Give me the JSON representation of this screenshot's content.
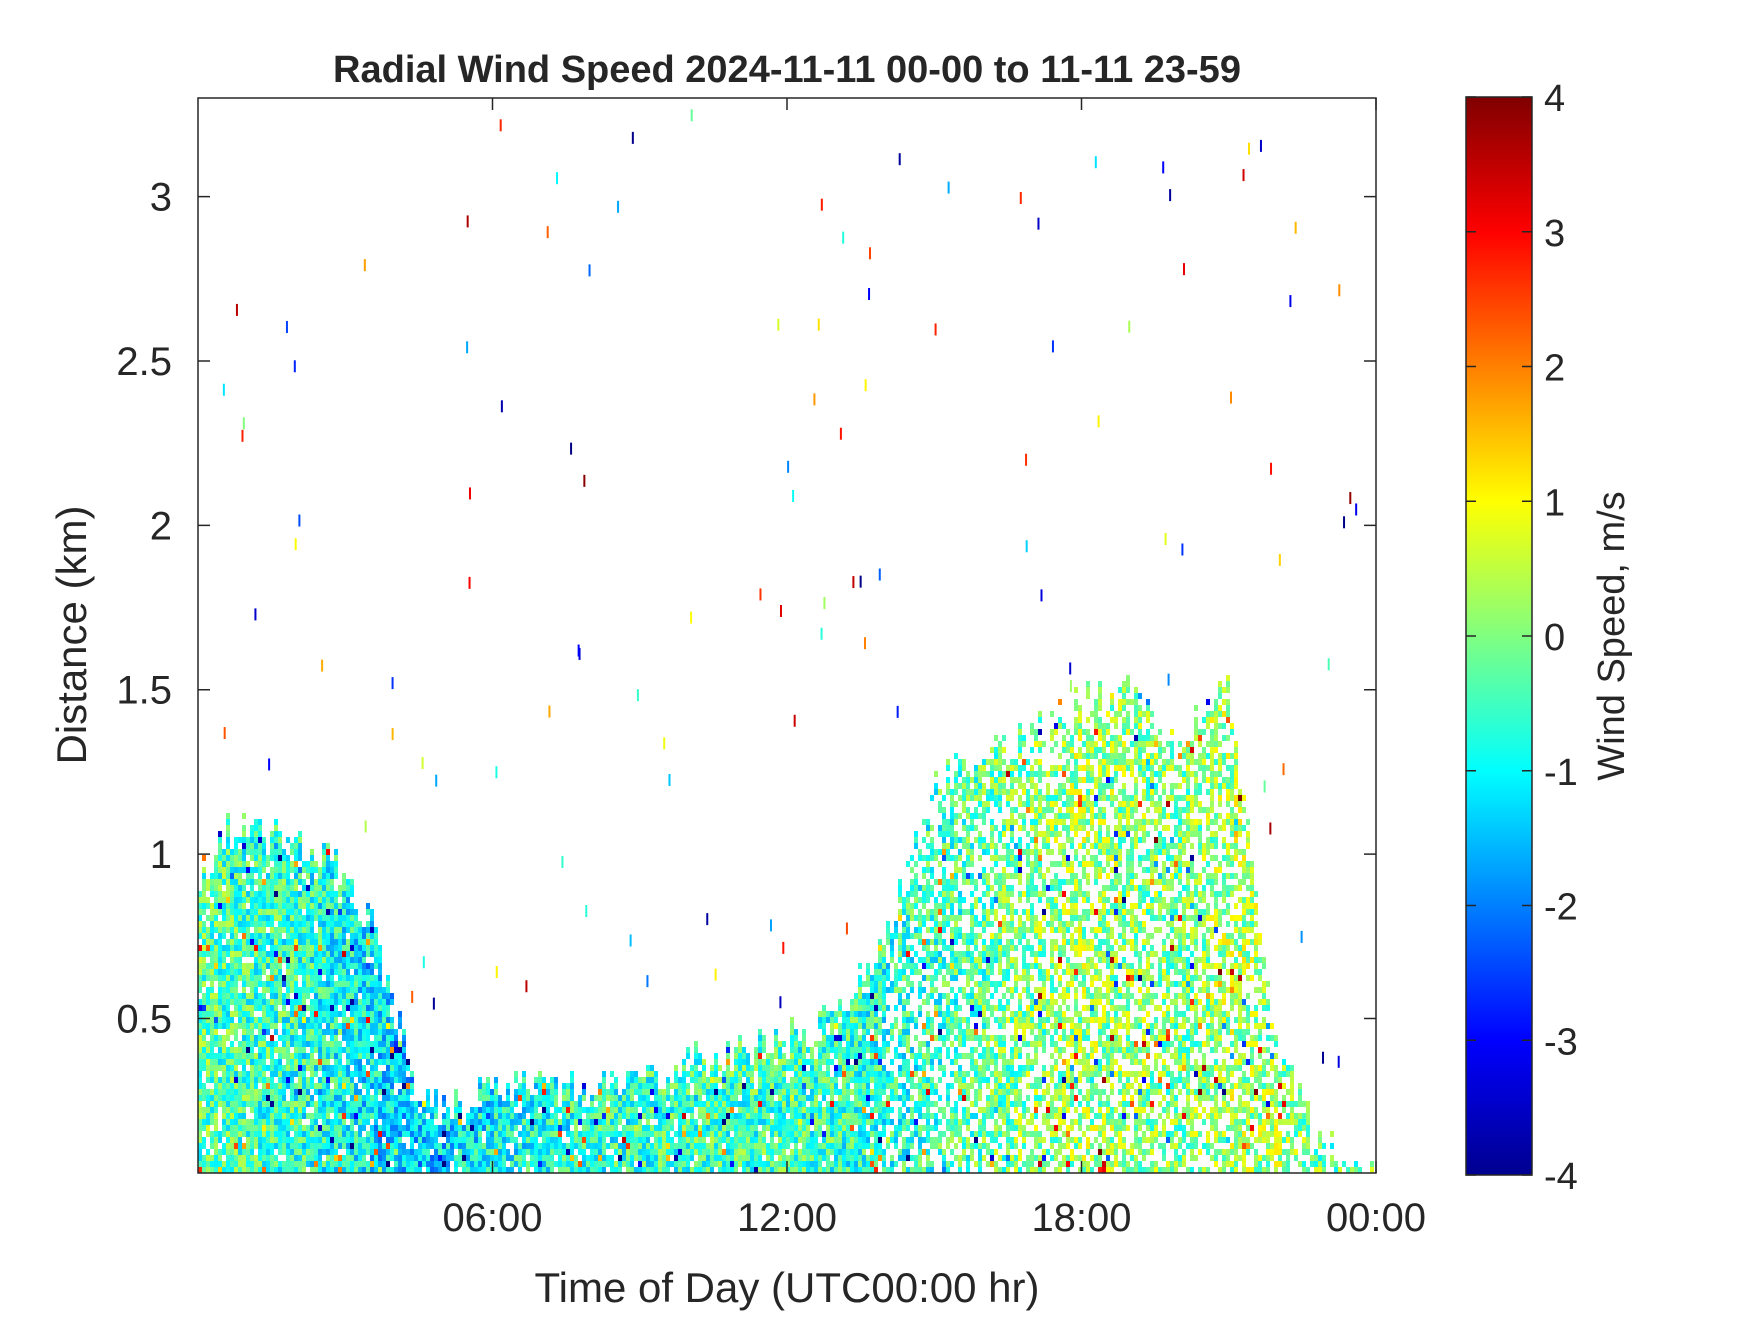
{
  "chart_data": {
    "type": "heatmap",
    "title": "Radial Wind Speed 2024-11-11 00-00 to 11-11 23-59",
    "xlabel": "Time of Day (UTC00:00 hr)",
    "ylabel": "Distance (km)",
    "xlim_hours": [
      0,
      24
    ],
    "ylim_km": [
      0.03,
      3.3
    ],
    "x_ticks": [
      {
        "hour": 6,
        "label": "06:00"
      },
      {
        "hour": 12,
        "label": "12:00"
      },
      {
        "hour": 18,
        "label": "18:00"
      },
      {
        "hour": 24,
        "label": "00:00"
      }
    ],
    "y_ticks": [
      {
        "value": 0.5,
        "label": "0.5"
      },
      {
        "value": 1,
        "label": "1"
      },
      {
        "value": 1.5,
        "label": "1.5"
      },
      {
        "value": 2,
        "label": "2"
      },
      {
        "value": 2.5,
        "label": "2.5"
      },
      {
        "value": 3,
        "label": "3"
      }
    ],
    "colorbar": {
      "label": "Wind Speed, m/s",
      "clim": [
        -4,
        4
      ],
      "colormap": "jet",
      "ticks": [
        {
          "value": 4,
          "label": "4"
        },
        {
          "value": 3,
          "label": "3"
        },
        {
          "value": 2,
          "label": "2"
        },
        {
          "value": 1,
          "label": "1"
        },
        {
          "value": 0,
          "label": "0"
        },
        {
          "value": -1,
          "label": "-1"
        },
        {
          "value": -2,
          "label": "-2"
        },
        {
          "value": -3,
          "label": "-3"
        },
        {
          "value": -4,
          "label": "-4"
        }
      ]
    },
    "grid": false,
    "data_envelope": [
      {
        "hour": 0.0,
        "top_km": 0.9,
        "speed": -0.3
      },
      {
        "hour": 0.5,
        "top_km": 1.05,
        "speed": -0.4
      },
      {
        "hour": 1.0,
        "top_km": 1.05,
        "speed": -0.5
      },
      {
        "hour": 2.0,
        "top_km": 1.05,
        "speed": -0.6
      },
      {
        "hour": 3.0,
        "top_km": 0.95,
        "speed": -0.9
      },
      {
        "hour": 3.5,
        "top_km": 0.8,
        "speed": -1.1
      },
      {
        "hour": 4.0,
        "top_km": 0.55,
        "speed": -1.3
      },
      {
        "hour": 4.5,
        "top_km": 0.25,
        "speed": -1.5
      },
      {
        "hour": 5.0,
        "top_km": 0.2,
        "speed": -1.2
      },
      {
        "hour": 6.0,
        "top_km": 0.3,
        "speed": -1.0
      },
      {
        "hour": 7.0,
        "top_km": 0.28,
        "speed": -0.8
      },
      {
        "hour": 8.0,
        "top_km": 0.27,
        "speed": -0.7
      },
      {
        "hour": 9.0,
        "top_km": 0.3,
        "speed": -0.6
      },
      {
        "hour": 10.0,
        "top_km": 0.35,
        "speed": -0.5
      },
      {
        "hour": 11.0,
        "top_km": 0.38,
        "speed": -0.5
      },
      {
        "hour": 12.0,
        "top_km": 0.42,
        "speed": -0.5
      },
      {
        "hour": 13.0,
        "top_km": 0.5,
        "speed": -0.6
      },
      {
        "hour": 14.0,
        "top_km": 0.7,
        "speed": -0.7
      },
      {
        "hour": 15.0,
        "top_km": 1.2,
        "speed": -0.6
      },
      {
        "hour": 16.0,
        "top_km": 1.3,
        "speed": -0.3
      },
      {
        "hour": 17.0,
        "top_km": 1.35,
        "speed": 0.0
      },
      {
        "hour": 18.0,
        "top_km": 1.45,
        "speed": 0.2
      },
      {
        "hour": 19.0,
        "top_km": 1.5,
        "speed": 0.1
      },
      {
        "hour": 20.0,
        "top_km": 1.3,
        "speed": -0.1
      },
      {
        "hour": 21.0,
        "top_km": 1.55,
        "speed": 0.3
      },
      {
        "hour": 22.0,
        "top_km": 0.4,
        "speed": 0.2
      },
      {
        "hour": 23.0,
        "top_km": 0.1,
        "speed": -0.2
      },
      {
        "hour": 24.0,
        "top_km": 0.05,
        "speed": -0.2
      }
    ]
  }
}
